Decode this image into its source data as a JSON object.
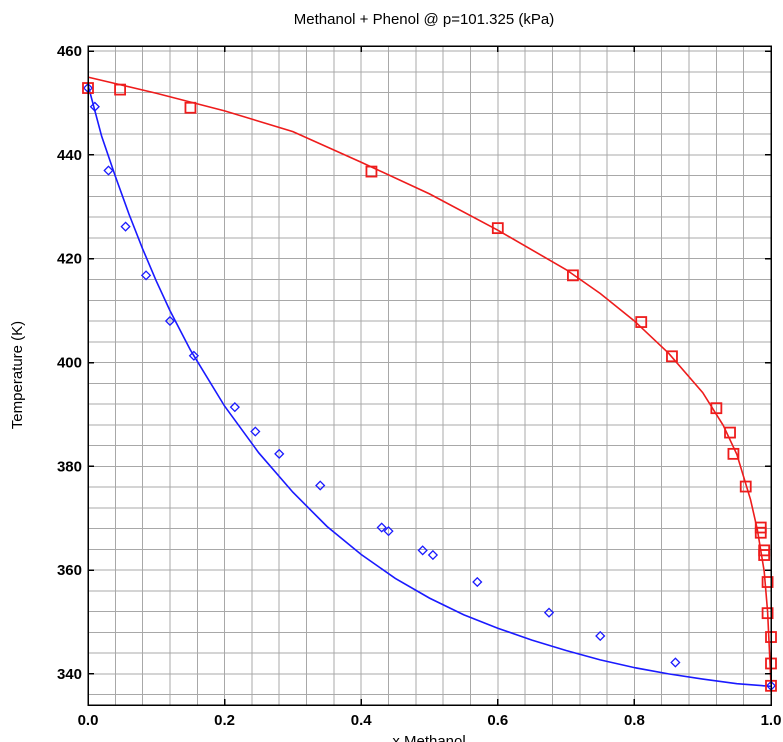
{
  "chart_data": {
    "type": "scatter",
    "title": "Methanol + Phenol @ p=101.325 (kPa)",
    "xlabel": "x Methanol",
    "ylabel": "Temperature (K)",
    "xlim": [
      0,
      1
    ],
    "ylim": [
      334,
      461
    ],
    "x_ticks": [
      0.0,
      0.2,
      0.4,
      0.6,
      0.8,
      1.0
    ],
    "x_tick_labels": [
      "0.0",
      "0.2",
      "0.4",
      "0.6",
      "0.8",
      "1.0"
    ],
    "y_ticks": [
      340,
      360,
      380,
      400,
      420,
      440,
      460
    ],
    "y_tick_labels": [
      "340",
      "360",
      "380",
      "400",
      "420",
      "440",
      "460"
    ],
    "grid": true,
    "minor_x_step": 0.04,
    "minor_y_step": 4,
    "colors": {
      "liquid": "#1a1aff",
      "vapor": "#ee1c1c"
    },
    "series": [
      {
        "marker": "diamond",
        "color": "#1a1aff",
        "points": [
          [
            0.0,
            452.9
          ],
          [
            0.01,
            449.3
          ],
          [
            0.03,
            437.0
          ],
          [
            0.055,
            426.2
          ],
          [
            0.085,
            416.8
          ],
          [
            0.12,
            408.0
          ],
          [
            0.155,
            401.3
          ],
          [
            0.215,
            391.4
          ],
          [
            0.245,
            386.7
          ],
          [
            0.28,
            382.4
          ],
          [
            0.34,
            376.3
          ],
          [
            0.43,
            368.2
          ],
          [
            0.44,
            367.5
          ],
          [
            0.49,
            363.8
          ],
          [
            0.505,
            362.9
          ],
          [
            0.57,
            357.7
          ],
          [
            0.675,
            351.8
          ],
          [
            0.75,
            347.3
          ],
          [
            0.86,
            342.2
          ],
          [
            1.0,
            337.7
          ]
        ]
      },
      {
        "marker": "square",
        "color": "#ee1c1c",
        "points": [
          [
            0.0,
            452.9
          ],
          [
            0.047,
            452.6
          ],
          [
            0.15,
            449.1
          ],
          [
            0.415,
            436.8
          ],
          [
            0.6,
            425.9
          ],
          [
            0.71,
            416.8
          ],
          [
            0.81,
            407.8
          ],
          [
            0.855,
            401.2
          ],
          [
            0.92,
            391.2
          ],
          [
            0.94,
            386.5
          ],
          [
            0.945,
            382.4
          ],
          [
            0.963,
            376.1
          ],
          [
            0.985,
            368.2
          ],
          [
            0.985,
            367.2
          ],
          [
            0.99,
            363.8
          ],
          [
            0.99,
            362.9
          ],
          [
            0.995,
            357.7
          ],
          [
            0.995,
            351.7
          ],
          [
            1.0,
            347.1
          ],
          [
            1.0,
            342.0
          ],
          [
            1.0,
            337.7
          ]
        ]
      }
    ],
    "curves": [
      {
        "color": "#1a1aff",
        "points": [
          [
            0.0,
            453.5
          ],
          [
            0.02,
            443.6
          ],
          [
            0.04,
            435.9
          ],
          [
            0.06,
            428.6
          ],
          [
            0.08,
            421.9
          ],
          [
            0.1,
            415.7
          ],
          [
            0.12,
            410.0
          ],
          [
            0.15,
            402.4
          ],
          [
            0.2,
            391.6
          ],
          [
            0.25,
            382.6
          ],
          [
            0.3,
            375.0
          ],
          [
            0.35,
            368.4
          ],
          [
            0.4,
            363.0
          ],
          [
            0.45,
            358.4
          ],
          [
            0.5,
            354.6
          ],
          [
            0.55,
            351.4
          ],
          [
            0.6,
            348.8
          ],
          [
            0.65,
            346.5
          ],
          [
            0.7,
            344.5
          ],
          [
            0.75,
            342.7
          ],
          [
            0.8,
            341.2
          ],
          [
            0.85,
            340.0
          ],
          [
            0.9,
            339.0
          ],
          [
            0.95,
            338.1
          ],
          [
            1.0,
            337.6
          ]
        ]
      },
      {
        "color": "#ee1c1c",
        "points": [
          [
            0.0,
            455.0
          ],
          [
            0.1,
            451.9
          ],
          [
            0.2,
            448.5
          ],
          [
            0.3,
            444.5
          ],
          [
            0.4,
            438.6
          ],
          [
            0.5,
            432.5
          ],
          [
            0.6,
            425.5
          ],
          [
            0.7,
            417.9
          ],
          [
            0.75,
            413.3
          ],
          [
            0.8,
            408.0
          ],
          [
            0.85,
            401.8
          ],
          [
            0.9,
            394.2
          ],
          [
            0.93,
            387.9
          ],
          [
            0.95,
            382.3
          ],
          [
            0.97,
            373.6
          ],
          [
            0.98,
            367.8
          ],
          [
            0.99,
            359.8
          ],
          [
            0.995,
            352.0
          ],
          [
            1.0,
            338.0
          ]
        ]
      }
    ]
  }
}
